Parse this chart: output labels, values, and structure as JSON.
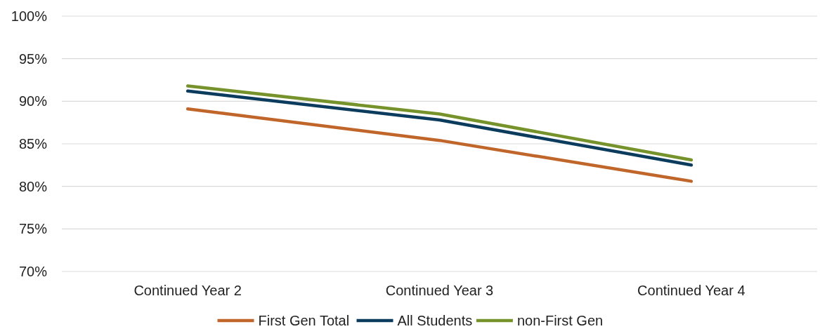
{
  "chart_data": {
    "type": "line",
    "categories": [
      "Continued Year 2",
      "Continued Year 3",
      "Continued Year 4"
    ],
    "series": [
      {
        "name": "First Gen Total",
        "color": "#c0662b",
        "values": [
          89.1,
          85.4,
          80.6
        ]
      },
      {
        "name": "All Students",
        "color": "#0b3c5d",
        "values": [
          91.2,
          87.8,
          82.5
        ]
      },
      {
        "name": "non-First Gen",
        "color": "#76922a",
        "values": [
          91.8,
          88.5,
          83.1
        ]
      }
    ],
    "ylim": [
      70,
      100
    ],
    "yticks": [
      {
        "value": 70,
        "label": "70%"
      },
      {
        "value": 75,
        "label": "75%"
      },
      {
        "value": 80,
        "label": "80%"
      },
      {
        "value": 85,
        "label": "85%"
      },
      {
        "value": 90,
        "label": "90%"
      },
      {
        "value": 95,
        "label": "95%"
      },
      {
        "value": 100,
        "label": "100%"
      }
    ],
    "grid": "y",
    "legend": "bottom",
    "marker": "none",
    "line_style": "solid"
  }
}
